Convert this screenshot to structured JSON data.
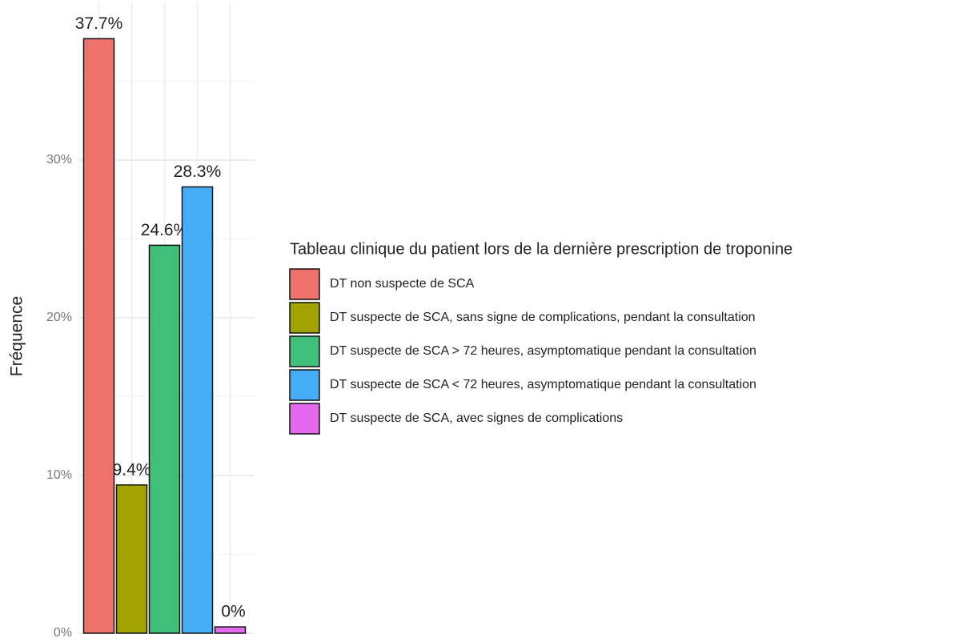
{
  "chart_data": {
    "type": "bar",
    "y_label": "Fréquence",
    "legend_title": "Tableau clinique du patient lors de la dernière prescription de troponine",
    "categories": [
      "DT non suspecte de SCA",
      "DT suspecte de SCA, sans signe de complications, pendant la consultation",
      "DT suspecte de SCA > 72 heures, asymptomatique pendant  la consultation",
      "DT suspecte de SCA < 72 heures, asymptomatique pendant la consultation",
      "DT suspecte de SCA, avec signes de complications"
    ],
    "values": [
      37.7,
      9.4,
      24.6,
      28.3,
      0.4
    ],
    "value_labels": [
      "37.7%",
      "9.4%",
      "24.6%",
      "28.3%",
      "0%"
    ],
    "colors": [
      "#ee726b",
      "#a3a300",
      "#3fbf7a",
      "#45adf5",
      "#e368ee"
    ],
    "ylim": [
      0,
      40
    ],
    "yticks": [
      {
        "value": 0,
        "label": "0%"
      },
      {
        "value": 10,
        "label": "10%"
      },
      {
        "value": 20,
        "label": "20%"
      },
      {
        "value": 30,
        "label": "30%"
      }
    ],
    "minor_yticks": [
      5,
      15,
      25,
      35
    ],
    "grid": true,
    "legend": "right"
  }
}
